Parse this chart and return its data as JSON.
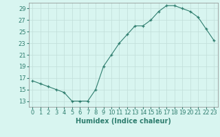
{
  "x": [
    0,
    1,
    2,
    3,
    4,
    5,
    6,
    7,
    8,
    9,
    10,
    11,
    12,
    13,
    14,
    15,
    16,
    17,
    18,
    19,
    20,
    21,
    22,
    23
  ],
  "y": [
    16.5,
    16.0,
    15.5,
    15.0,
    14.5,
    13.0,
    13.0,
    13.0,
    15.0,
    19.0,
    21.0,
    23.0,
    24.5,
    26.0,
    26.0,
    27.0,
    28.5,
    29.5,
    29.5,
    29.0,
    28.5,
    27.5,
    25.5,
    23.5
  ],
  "line_color": "#2e7d6e",
  "marker": "+",
  "marker_size": 3,
  "bg_color": "#d8f5f0",
  "grid_color": "#c0ddd8",
  "xlabel": "Humidex (Indice chaleur)",
  "xlim": [
    -0.5,
    23.5
  ],
  "ylim": [
    12,
    30
  ],
  "yticks": [
    13,
    15,
    17,
    19,
    21,
    23,
    25,
    27,
    29
  ],
  "xticks": [
    0,
    1,
    2,
    3,
    4,
    5,
    6,
    7,
    8,
    9,
    10,
    11,
    12,
    13,
    14,
    15,
    16,
    17,
    18,
    19,
    20,
    21,
    22,
    23
  ],
  "tick_fontsize": 6,
  "label_fontsize": 7
}
